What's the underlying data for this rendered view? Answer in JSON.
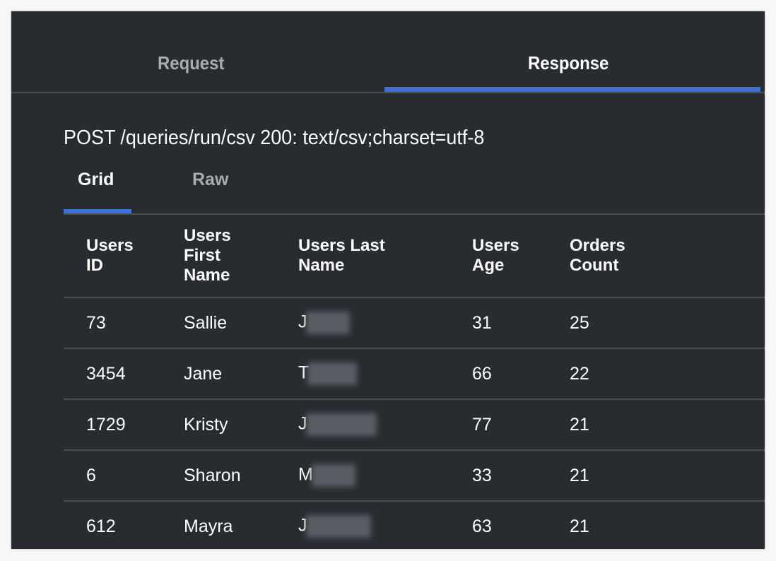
{
  "tabs": [
    {
      "label": "Request",
      "active": false
    },
    {
      "label": "Response",
      "active": true
    }
  ],
  "response_line": "POST /queries/run/csv 200: text/csv;charset=utf-8",
  "view_tabs": [
    {
      "label": "Grid",
      "active": true
    },
    {
      "label": "Raw",
      "active": false
    }
  ],
  "accent_color": "#3b72d9",
  "table": {
    "headers": [
      [
        "Users",
        "ID"
      ],
      [
        "Users",
        "First",
        "Name"
      ],
      [
        "Users Last",
        "Name"
      ],
      [
        "Users",
        "Age"
      ],
      [
        "Orders",
        "Count"
      ]
    ],
    "rows": [
      {
        "id": "73",
        "first": "Sallie",
        "last": "J",
        "age": "31",
        "orders": "25"
      },
      {
        "id": "3454",
        "first": "Jane",
        "last": "T",
        "age": "66",
        "orders": "22"
      },
      {
        "id": "1729",
        "first": "Kristy",
        "last": "J",
        "age": "77",
        "orders": "21"
      },
      {
        "id": "6",
        "first": "Sharon",
        "last": "M",
        "age": "33",
        "orders": "21"
      },
      {
        "id": "612",
        "first": "Mayra",
        "last": "J",
        "age": "63",
        "orders": "21"
      }
    ]
  }
}
